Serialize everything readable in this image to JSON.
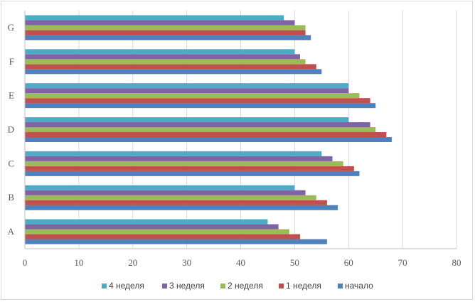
{
  "chart_data": {
    "type": "bar",
    "orientation": "horizontal",
    "title": "",
    "xlabel": "",
    "ylabel": "",
    "categories": [
      "A",
      "B",
      "C",
      "D",
      "E",
      "F",
      "G"
    ],
    "series": [
      {
        "name": "начало",
        "color": "#4f81bd",
        "values": [
          56,
          58,
          62,
          68,
          65,
          55,
          53
        ]
      },
      {
        "name": "1 неделя",
        "color": "#c0504d",
        "values": [
          51,
          56,
          61,
          67,
          64,
          54,
          52
        ]
      },
      {
        "name": "2 неделя",
        "color": "#9bbb59",
        "values": [
          49,
          54,
          59,
          65,
          62,
          52,
          52
        ]
      },
      {
        "name": "3 неделя",
        "color": "#8064a2",
        "values": [
          47,
          52,
          57,
          64,
          60,
          51,
          50
        ]
      },
      {
        "name": "4 неделя",
        "color": "#4bacc6",
        "values": [
          45,
          50,
          55,
          60,
          60,
          50,
          48
        ]
      }
    ],
    "xlim": [
      0,
      80
    ],
    "xticks": [
      0,
      10,
      20,
      30,
      40,
      50,
      60,
      70,
      80
    ],
    "grid": "vertical",
    "legend_position": "bottom",
    "legend_order": [
      "4 неделя",
      "3 неделя",
      "2 неделя",
      "1 неделя",
      "начало"
    ]
  }
}
